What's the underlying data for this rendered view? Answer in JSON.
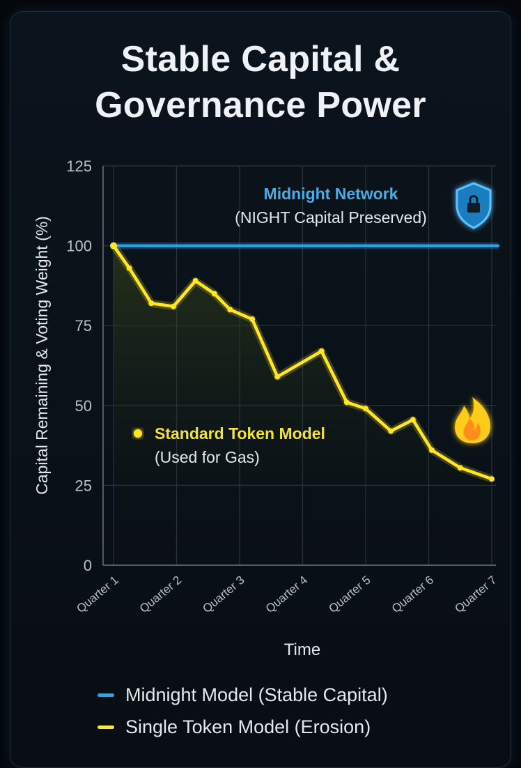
{
  "title": "Stable Capital &\nGovernance Power",
  "colors": {
    "midnight": "#2ba3ec",
    "single": "#ffe626",
    "midnight_text": "#4aaee6",
    "single_text": "#f2e335",
    "background": "#0a1118",
    "grid": "#2a3440",
    "axis_text": "#b9c0c7"
  },
  "icons": {
    "lock": "shield-lock-icon",
    "fire": "flame-icon"
  },
  "annotations": {
    "midnight_line1": "Midnight Network",
    "midnight_line2": "(NIGHT Capital Preserved)",
    "single_line1": "Standard Token Model",
    "single_line2": "(Used for Gas)"
  },
  "legend": {
    "midnight": "Midnight Model (Stable Capital)",
    "single": "Single Token Model (Erosion)"
  },
  "chart_data": {
    "type": "line",
    "title": "Stable Capital & Governance Power",
    "xlabel": "Time",
    "ylabel": "Capital Remaining & Voting Weight (%)",
    "categories": [
      "Quarter 1",
      "Quarter 2",
      "Quarter 3",
      "Quarter 4",
      "Quarter 5",
      "Quarter 6",
      "Quarter 7"
    ],
    "ylim": [
      0,
      125
    ],
    "yticks": [
      0,
      25,
      50,
      75,
      100,
      125
    ],
    "grid": true,
    "legend_position": "bottom",
    "series": [
      {
        "name": "Midnight Model (Stable Capital)",
        "color": "#2ba3ec",
        "points": [
          [
            1,
            100
          ],
          [
            7.1,
            100
          ]
        ]
      },
      {
        "name": "Single Token Model (Erosion)",
        "color": "#ffe626",
        "points": [
          [
            1.0,
            100
          ],
          [
            1.25,
            93
          ],
          [
            1.6,
            82
          ],
          [
            1.95,
            81
          ],
          [
            2.3,
            89
          ],
          [
            2.6,
            85
          ],
          [
            2.85,
            80
          ],
          [
            3.2,
            77
          ],
          [
            3.6,
            59
          ],
          [
            4.3,
            67
          ],
          [
            4.7,
            51
          ],
          [
            5.0,
            49
          ],
          [
            5.4,
            42
          ],
          [
            5.75,
            45.5
          ],
          [
            6.05,
            36
          ],
          [
            6.5,
            30.5
          ],
          [
            7.0,
            27
          ]
        ]
      }
    ]
  }
}
